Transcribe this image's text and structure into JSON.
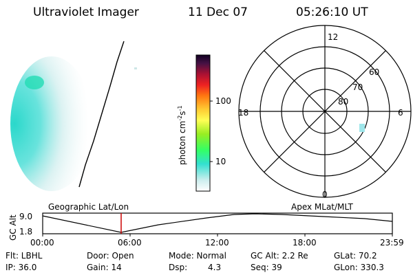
{
  "header": {
    "title": "Ultraviolet Imager",
    "date": "11 Dec 07",
    "time": "05:26:10 UT"
  },
  "colorbar": {
    "unit_label": "photon cm",
    "unit_sup1": "-2",
    "unit_mid": "s",
    "unit_sup2": "-1",
    "ticks": [
      "100",
      "10"
    ]
  },
  "polar_plot": {
    "mlt_labels": {
      "top": "12",
      "bottom": "0",
      "left": "18",
      "right": "6"
    },
    "lat_labels": [
      "60",
      "70",
      "80"
    ]
  },
  "altitude_plot": {
    "ylabel": "GC Alt",
    "ytick_top": "9.0",
    "ytick_bottom": "1.8",
    "left_title": "Geographic Lat/Lon",
    "right_title": "Apex MLat/MLT",
    "xticks": [
      "00:00",
      "06:00",
      "12:00",
      "18:00",
      "23:59"
    ],
    "marker_color": "#cc0000"
  },
  "info": {
    "filter": "Flt: LBHL",
    "door": "Door: Open",
    "mode": "Mode: Normal",
    "gc_alt": "GC Alt: 2.2 Re",
    "glat": "GLat:  70.2",
    "ip": "IP: 36.0",
    "gain": "Gain: 14",
    "dsp_label": "Dsp:",
    "dsp_value": "4.3",
    "seq": "Seq: 39",
    "glon": "GLon: 330.3"
  }
}
